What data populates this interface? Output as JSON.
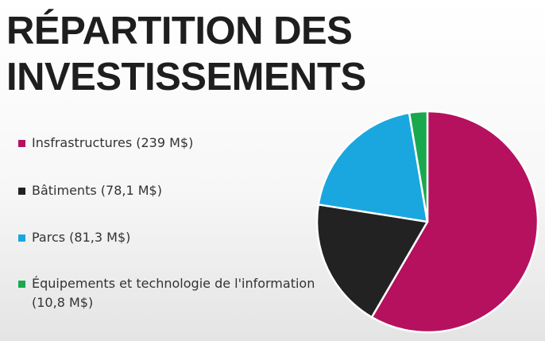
{
  "slide": {
    "title_lines": [
      "RÉPARTITION DES",
      "INVESTISSEMENTS"
    ]
  },
  "legend": [
    {
      "label": "Insfrastructures (239 M$)",
      "color": "#b5115e"
    },
    {
      "label": "Bâtiments (78,1 M$)",
      "color": "#222222"
    },
    {
      "label": "Parcs (81,3 M$)",
      "color": "#1aa7e0"
    },
    {
      "label": "Équipements et technologie de l'information (10,8 M$)",
      "color": "#1aa84f"
    }
  ],
  "chart_data": {
    "type": "pie",
    "categories": [
      "Insfrastructures",
      "Bâtiments",
      "Parcs",
      "Équipements et technologie de l'information"
    ],
    "values": [
      239,
      78.1,
      81.3,
      10.8
    ],
    "unit": "M$",
    "colors": [
      "#b5115e",
      "#222222",
      "#1aa7e0",
      "#1aa84f"
    ],
    "legend_position": "left"
  }
}
